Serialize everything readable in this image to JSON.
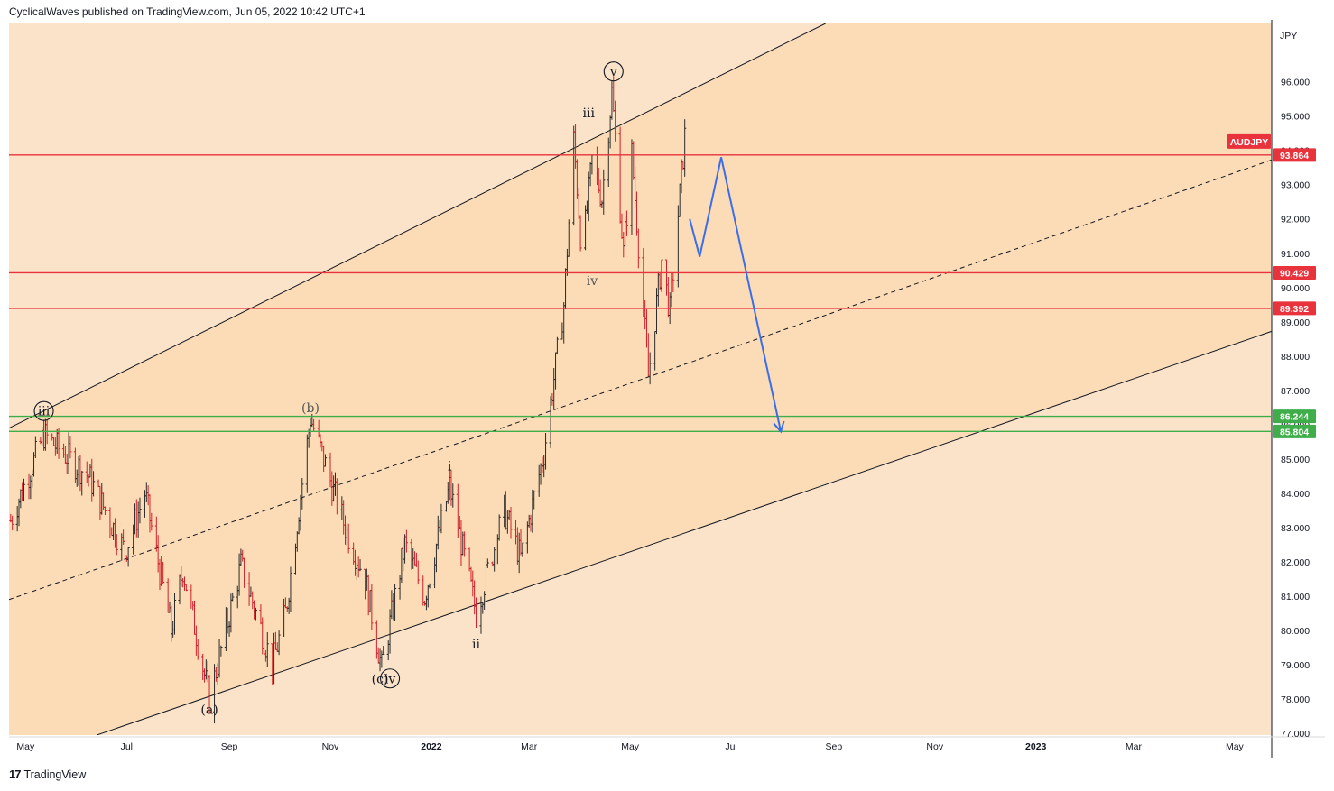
{
  "header": {
    "publisher": "CyclicalWaves published on TradingView.com, Jun 05, 2022 10:42 UTC+1"
  },
  "footer": {
    "brand_logo": "17",
    "brand_name": "TradingView"
  },
  "colors": {
    "band_outer": "#fbe3c9",
    "band_inner": "#fbdcb6",
    "price_up": "#2a2a2a",
    "price_down": "#d0202a",
    "resistance": "#e8323c",
    "support": "#3fae4a",
    "projection": "#3a6ee8",
    "channel": "#131722"
  },
  "chart_data": {
    "type": "candlestick",
    "symbol": "AUDJPY",
    "unit_label": "JPY",
    "x_tick_labels": [
      "May",
      "Jul",
      "Sep",
      "Nov",
      "2022",
      "Mar",
      "May",
      "Jul",
      "Sep",
      "Nov",
      "2023",
      "Mar",
      "May"
    ],
    "y_tick_labels": [
      "77.000",
      "78.000",
      "79.000",
      "80.000",
      "81.000",
      "82.000",
      "83.000",
      "84.000",
      "85.000",
      "86.000",
      "87.000",
      "88.000",
      "89.000",
      "90.000",
      "91.000",
      "92.000",
      "93.000",
      "94.000",
      "95.000",
      "96.000"
    ],
    "ylim": [
      76.95,
      97.7
    ],
    "last_price": 93.864,
    "horizontal_levels": [
      {
        "label": "93.864",
        "value": 93.864,
        "color": "#e8323c"
      },
      {
        "label": "90.429",
        "value": 90.429,
        "color": "#e8323c"
      },
      {
        "label": "89.392",
        "value": 89.392,
        "color": "#e8323c"
      },
      {
        "label": "86.244",
        "value": 86.244,
        "color": "#3fae4a"
      },
      {
        "label": "85.804",
        "value": 85.804,
        "color": "#3fae4a"
      }
    ],
    "wave_labels": [
      {
        "text": "iii",
        "circled": true,
        "date": "2021-05-12",
        "price": 86.4
      },
      {
        "text": "(a)",
        "circled": false,
        "date": "2021-08-20",
        "price": 77.7
      },
      {
        "text": "(b)",
        "circled": false,
        "date": "2021-10-20",
        "price": 86.5
      },
      {
        "text": "(c)",
        "circled": false,
        "date": "2021-12-01",
        "price": 78.6
      },
      {
        "text": "iv",
        "circled": true,
        "date": "2021-12-07",
        "price": 78.6
      },
      {
        "text": "i",
        "circled": false,
        "date": "2022-01-12",
        "price": 84.8
      },
      {
        "text": "ii",
        "circled": false,
        "date": "2022-01-28",
        "price": 79.6
      },
      {
        "text": "iii",
        "circled": false,
        "date": "2022-04-06",
        "price": 95.1
      },
      {
        "text": "iv",
        "circled": false,
        "date": "2022-04-08",
        "price": 90.2
      },
      {
        "text": "v",
        "circled": true,
        "date": "2022-04-21",
        "price": 96.3
      }
    ],
    "channel": {
      "upper": [
        {
          "date": "2021-04-21",
          "price": 85.9
        },
        {
          "date": "2022-08-27",
          "price": 97.7
        }
      ],
      "lower": [
        {
          "date": "2021-06-13",
          "price": 76.95
        },
        {
          "date": "2023-05-28",
          "price": 88.8
        }
      ],
      "median": [
        {
          "date": "2021-04-21",
          "price": 80.9
        },
        {
          "date": "2023-05-28",
          "price": 93.8
        }
      ]
    },
    "projection_path": [
      {
        "date": "2022-06-06",
        "price": 92.0
      },
      {
        "date": "2022-06-12",
        "price": 90.9
      },
      {
        "date": "2022-06-25",
        "price": 93.8
      },
      {
        "date": "2022-07-31",
        "price": 85.8
      }
    ]
  }
}
